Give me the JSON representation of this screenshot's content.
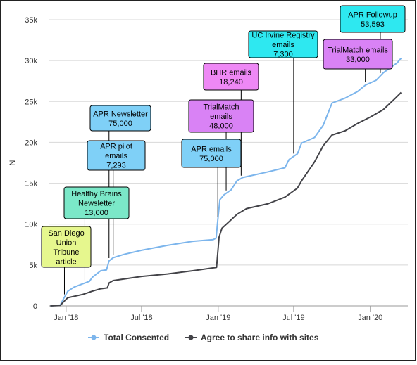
{
  "chart_data": {
    "type": "line",
    "ylabel": "N",
    "xlabel": "",
    "ylim": [
      0,
      35000
    ],
    "y_ticks": [
      {
        "value": 0,
        "label": "0"
      },
      {
        "value": 5000,
        "label": "5k"
      },
      {
        "value": 10000,
        "label": "10k"
      },
      {
        "value": 15000,
        "label": "15k"
      },
      {
        "value": 20000,
        "label": "20k"
      },
      {
        "value": 25000,
        "label": "25k"
      },
      {
        "value": 30000,
        "label": "30k"
      },
      {
        "value": 35000,
        "label": "35k"
      }
    ],
    "x_range": [
      "2017-11-20",
      "2020-03-31"
    ],
    "x_ticks": [
      {
        "date": "2018-01-01",
        "label": "Jan '18"
      },
      {
        "date": "2018-07-01",
        "label": "Jul '18"
      },
      {
        "date": "2019-01-01",
        "label": "Jan '19"
      },
      {
        "date": "2019-07-01",
        "label": "Jul '19"
      },
      {
        "date": "2020-01-01",
        "label": "Jan '20"
      }
    ],
    "grid": "horizontal",
    "legend_position": "bottom",
    "series": [
      {
        "name": "Total Consented",
        "color": "#7cb5ec",
        "points": [
          [
            "2017-11-24",
            0
          ],
          [
            "2017-12-18",
            100
          ],
          [
            "2017-12-24",
            700
          ],
          [
            "2018-01-05",
            1800
          ],
          [
            "2018-01-20",
            2300
          ],
          [
            "2018-02-10",
            2700
          ],
          [
            "2018-02-26",
            3000
          ],
          [
            "2018-03-05",
            3500
          ],
          [
            "2018-03-25",
            4300
          ],
          [
            "2018-04-08",
            4400
          ],
          [
            "2018-04-14",
            5500
          ],
          [
            "2018-04-24",
            5900
          ],
          [
            "2018-05-20",
            6300
          ],
          [
            "2018-07-01",
            6800
          ],
          [
            "2018-09-01",
            7400
          ],
          [
            "2018-11-01",
            7900
          ],
          [
            "2018-12-20",
            8100
          ],
          [
            "2018-12-27",
            8300
          ],
          [
            "2018-12-31",
            10500
          ],
          [
            "2019-01-05",
            13000
          ],
          [
            "2019-01-15",
            13600
          ],
          [
            "2019-02-01",
            14200
          ],
          [
            "2019-02-15",
            15300
          ],
          [
            "2019-03-01",
            15700
          ],
          [
            "2019-05-01",
            16400
          ],
          [
            "2019-06-10",
            16900
          ],
          [
            "2019-06-20",
            17900
          ],
          [
            "2019-07-10",
            18600
          ],
          [
            "2019-07-20",
            19900
          ],
          [
            "2019-08-20",
            20600
          ],
          [
            "2019-09-10",
            22100
          ],
          [
            "2019-10-01",
            24800
          ],
          [
            "2019-11-01",
            25400
          ],
          [
            "2019-12-01",
            26200
          ],
          [
            "2019-12-20",
            27000
          ],
          [
            "2020-01-15",
            27600
          ],
          [
            "2020-02-01",
            28500
          ],
          [
            "2020-02-20",
            29200
          ],
          [
            "2020-03-05",
            29700
          ],
          [
            "2020-03-15",
            30300
          ]
        ]
      },
      {
        "name": "Agree to share info with sites",
        "color": "#434348",
        "points": [
          [
            "2017-11-24",
            0
          ],
          [
            "2017-12-18",
            50
          ],
          [
            "2017-12-24",
            400
          ],
          [
            "2018-01-05",
            1000
          ],
          [
            "2018-02-10",
            1400
          ],
          [
            "2018-03-05",
            1800
          ],
          [
            "2018-03-25",
            2100
          ],
          [
            "2018-04-10",
            2200
          ],
          [
            "2018-04-14",
            2800
          ],
          [
            "2018-04-24",
            3100
          ],
          [
            "2018-07-01",
            3600
          ],
          [
            "2018-09-01",
            3900
          ],
          [
            "2018-11-01",
            4300
          ],
          [
            "2018-12-28",
            4700
          ],
          [
            "2019-01-03",
            8400
          ],
          [
            "2019-01-10",
            9500
          ],
          [
            "2019-01-25",
            10200
          ],
          [
            "2019-02-15",
            11200
          ],
          [
            "2019-03-10",
            11900
          ],
          [
            "2019-05-01",
            12500
          ],
          [
            "2019-06-10",
            13300
          ],
          [
            "2019-07-10",
            14400
          ],
          [
            "2019-07-20",
            15300
          ],
          [
            "2019-08-20",
            17600
          ],
          [
            "2019-09-10",
            19600
          ],
          [
            "2019-10-01",
            20900
          ],
          [
            "2019-11-01",
            21400
          ],
          [
            "2019-12-01",
            22300
          ],
          [
            "2020-01-01",
            23100
          ],
          [
            "2020-02-01",
            24000
          ],
          [
            "2020-03-01",
            25400
          ],
          [
            "2020-03-15",
            26100
          ]
        ]
      }
    ],
    "annotations": [
      {
        "text": [
          "San Diego",
          "Union",
          "Tribune",
          "article"
        ],
        "color": "#e6f78e",
        "target": "2017-12-28"
      },
      {
        "text": [
          "Healthy Brains",
          "Newsletter",
          "13,000"
        ],
        "color": "#7be8c8",
        "target": "2018-02-15"
      },
      {
        "text": [
          "APR pilot",
          "emails",
          "7,293"
        ],
        "color": "#7fd0f7",
        "target": "2018-04-24"
      },
      {
        "text": [
          "APR Newsletter",
          "75,000"
        ],
        "color": "#7fd0f7",
        "target": "2018-04-14"
      },
      {
        "text": [
          "APR emails",
          "75,000"
        ],
        "color": "#7fd0f7",
        "target": "2018-12-31"
      },
      {
        "text": [
          "TrialMatch",
          "emails",
          "48,000"
        ],
        "color": "#d982f5",
        "target": "2019-01-20"
      },
      {
        "text": [
          "BHR emails",
          "18,240"
        ],
        "color": "#ee88f5",
        "target": "2019-02-25"
      },
      {
        "text": [
          "UC Irvine Registry",
          "emails",
          "7,300"
        ],
        "color": "#2ee8f0",
        "target": "2019-07-01"
      },
      {
        "text": [
          "TrialMatch emails",
          "33,000"
        ],
        "color": "#d982f5",
        "target": "2019-12-20"
      },
      {
        "text": [
          "APR Followup",
          "53,593"
        ],
        "color": "#2ee8f0",
        "target": "2020-01-25"
      }
    ]
  }
}
